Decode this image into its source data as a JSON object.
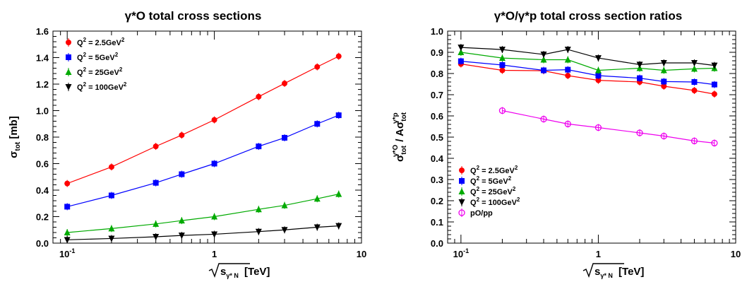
{
  "chart_data": [
    {
      "type": "line",
      "title": "γ*O total cross sections",
      "xlabel": "√s γ* N [TeV]",
      "ylabel": "σtot [mb]",
      "xscale": "log",
      "xlim": [
        0.08,
        10
      ],
      "ylim": [
        0,
        1.6
      ],
      "xticks": [
        "10⁻¹",
        "1",
        "10"
      ],
      "yticks": [
        "0.0",
        "0.2",
        "0.4",
        "0.6",
        "0.8",
        "1.0",
        "1.2",
        "1.4",
        "1.6"
      ],
      "legend_position": "top-left",
      "x": [
        0.1,
        0.2,
        0.4,
        0.6,
        1,
        2,
        3,
        5,
        7
      ],
      "series": [
        {
          "name": "Q² = 2.5GeV²",
          "color": "#ff0000",
          "marker": "circle",
          "values": [
            0.45,
            0.575,
            0.73,
            0.815,
            0.93,
            1.105,
            1.205,
            1.33,
            1.41
          ]
        },
        {
          "name": "Q² = 5GeV²",
          "color": "#0000ff",
          "marker": "square",
          "values": [
            0.275,
            0.36,
            0.455,
            0.52,
            0.6,
            0.73,
            0.795,
            0.9,
            0.965
          ]
        },
        {
          "name": "Q² = 25GeV²",
          "color": "#00aa00",
          "marker": "triangle-up",
          "values": [
            0.08,
            0.11,
            0.145,
            0.17,
            0.2,
            0.255,
            0.285,
            0.335,
            0.37
          ]
        },
        {
          "name": "Q² = 100GeV²",
          "color": "#000000",
          "marker": "triangle-down",
          "values": [
            0.025,
            0.035,
            0.048,
            0.058,
            0.067,
            0.087,
            0.1,
            0.12,
            0.13
          ]
        }
      ]
    },
    {
      "type": "line",
      "title": "γ*O/γ*p total cross section ratios",
      "xlabel": "√s γ* N [TeV]",
      "ylabel": "σtot γ*O / A σtot γ*p",
      "xscale": "log",
      "xlim": [
        0.08,
        10
      ],
      "ylim": [
        0,
        1.0
      ],
      "xticks": [
        "10⁻¹",
        "1",
        "10"
      ],
      "yticks": [
        "0.0",
        "0.1",
        "0.2",
        "0.3",
        "0.4",
        "0.5",
        "0.6",
        "0.7",
        "0.8",
        "0.9",
        "1.0"
      ],
      "legend_position": "bottom-left",
      "series": [
        {
          "name": "Q² = 2.5GeV²",
          "color": "#ff0000",
          "marker": "circle",
          "x": [
            0.1,
            0.2,
            0.4,
            0.6,
            1,
            2,
            3,
            5,
            7
          ],
          "values": [
            0.845,
            0.815,
            0.813,
            0.79,
            0.768,
            0.76,
            0.74,
            0.72,
            0.703
          ]
        },
        {
          "name": "Q² = 5GeV²",
          "color": "#0000ff",
          "marker": "square",
          "x": [
            0.1,
            0.2,
            0.4,
            0.6,
            1,
            2,
            3,
            5,
            7
          ],
          "values": [
            0.858,
            0.84,
            0.815,
            0.818,
            0.79,
            0.778,
            0.762,
            0.76,
            0.748
          ]
        },
        {
          "name": "Q² = 25GeV²",
          "color": "#00aa00",
          "marker": "triangle-up",
          "x": [
            0.1,
            0.2,
            0.4,
            0.6,
            1,
            2,
            3,
            5,
            7
          ],
          "values": [
            0.9,
            0.873,
            0.865,
            0.865,
            0.815,
            0.825,
            0.815,
            0.822,
            0.825
          ]
        },
        {
          "name": "Q² = 100GeV²",
          "color": "#000000",
          "marker": "triangle-down",
          "x": [
            0.1,
            0.2,
            0.4,
            0.6,
            1,
            2,
            3,
            5,
            7
          ],
          "values": [
            0.923,
            0.913,
            0.89,
            0.913,
            0.873,
            0.842,
            0.85,
            0.85,
            0.838
          ]
        },
        {
          "name": "pO/pp",
          "color": "#ee00ee",
          "marker": "open-circle",
          "x": [
            0.2,
            0.4,
            0.6,
            1,
            2,
            3,
            5,
            7
          ],
          "values": [
            0.625,
            0.585,
            0.562,
            0.545,
            0.52,
            0.505,
            0.482,
            0.472
          ]
        }
      ]
    }
  ]
}
